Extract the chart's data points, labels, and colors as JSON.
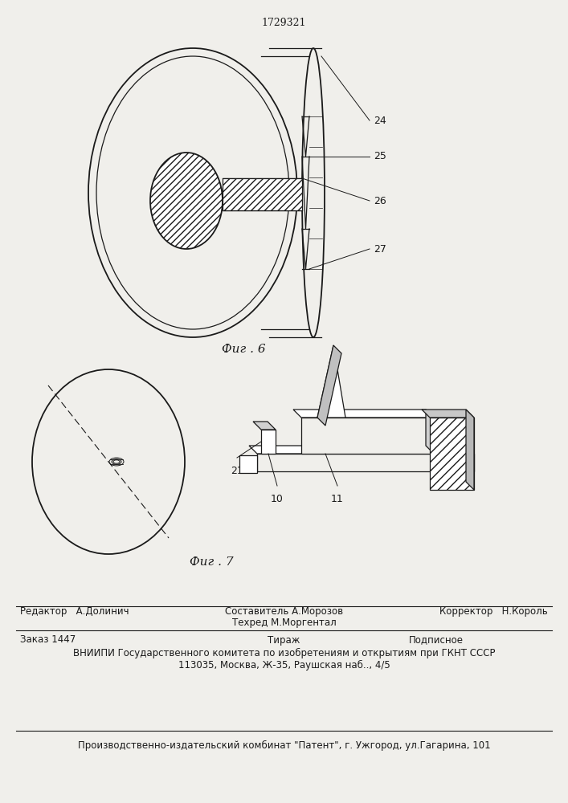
{
  "patent_number": "1729321",
  "fig6_label": "Фиг . 6",
  "fig7_label": "Фиг . 7",
  "footer_line1_left": "Редактор   А.Долинич",
  "footer_line1_center_top": "Составитель А.Морозов",
  "footer_line1_center_bot": "Техред М.Моргентал",
  "footer_line1_right": "Корректор   Н.Король",
  "footer_line2_col1": "Заказ 1447",
  "footer_line2_col2": "Тираж",
  "footer_line2_col3": "Подписное",
  "footer_line3": "ВНИИПИ Государственного комитета по изобретениям и открытиям при ГКНТ СССР",
  "footer_line4": "113035, Москва, Ж-35, Раушская наб.., 4/5",
  "footer_line5": "Производственно-издательский комбинат \"Патент\", г. Ужгород, ул.Гагарина, 101",
  "bg_color": "#f0efeb",
  "line_color": "#1a1a1a"
}
